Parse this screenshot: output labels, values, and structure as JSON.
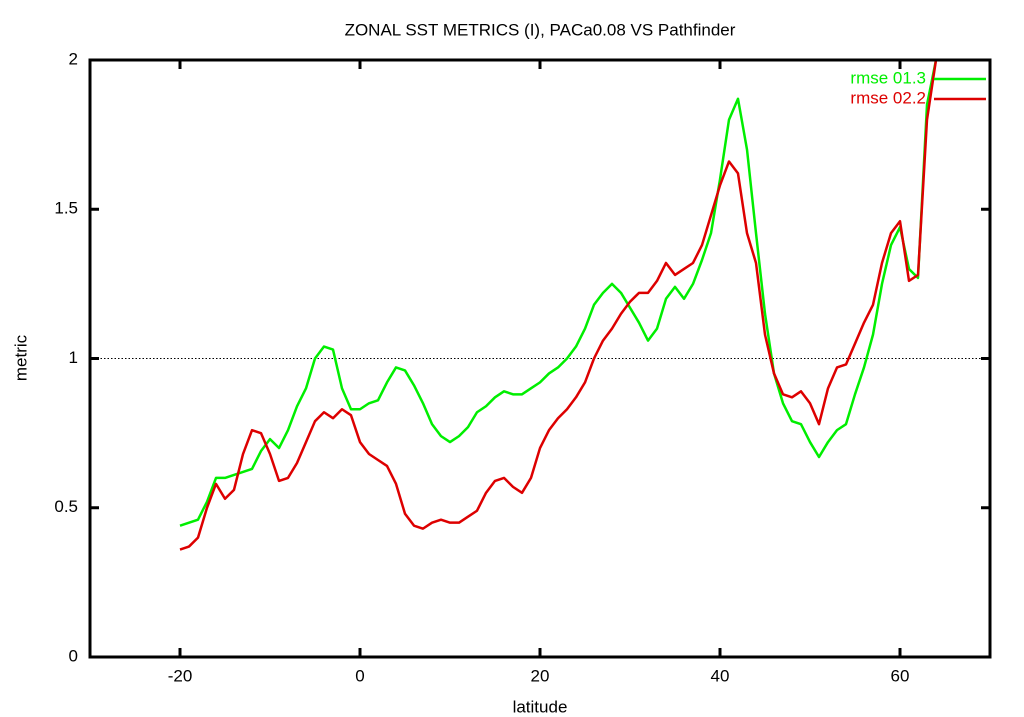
{
  "chart_data": {
    "type": "line",
    "title": "ZONAL SST METRICS (I), PACa0.08 VS Pathfinder",
    "x_label": "latitude",
    "y_label": "metric",
    "x": [
      -20,
      -19,
      -18,
      -17,
      -16,
      -15,
      -14,
      -13,
      -12,
      -11,
      -10,
      -9,
      -8,
      -7,
      -6,
      -5,
      -4,
      -3,
      -2,
      -1,
      0,
      1,
      2,
      3,
      4,
      5,
      6,
      7,
      8,
      9,
      10,
      11,
      12,
      13,
      14,
      15,
      16,
      17,
      18,
      19,
      20,
      21,
      22,
      23,
      24,
      25,
      26,
      27,
      28,
      29,
      30,
      31,
      32,
      33,
      34,
      35,
      36,
      37,
      38,
      39,
      40,
      41,
      42,
      43,
      44,
      45,
      46,
      47,
      48,
      49,
      50,
      51,
      52,
      53,
      54,
      55,
      56,
      57,
      58,
      59,
      60,
      61,
      62,
      63,
      64
    ],
    "series": [
      {
        "name": "rmse 01.3",
        "color": "#00ee00",
        "values": [
          0.44,
          0.45,
          0.46,
          0.52,
          0.6,
          0.6,
          0.61,
          0.62,
          0.63,
          0.69,
          0.73,
          0.7,
          0.76,
          0.84,
          0.9,
          1.0,
          1.04,
          1.03,
          0.9,
          0.83,
          0.83,
          0.85,
          0.86,
          0.92,
          0.97,
          0.96,
          0.91,
          0.85,
          0.78,
          0.74,
          0.72,
          0.74,
          0.77,
          0.82,
          0.84,
          0.87,
          0.89,
          0.88,
          0.88,
          0.9,
          0.92,
          0.95,
          0.97,
          1.0,
          1.04,
          1.1,
          1.18,
          1.22,
          1.25,
          1.22,
          1.17,
          1.12,
          1.06,
          1.1,
          1.2,
          1.24,
          1.2,
          1.25,
          1.33,
          1.42,
          1.6,
          1.8,
          1.87,
          1.7,
          1.42,
          1.15,
          0.95,
          0.85,
          0.79,
          0.78,
          0.72,
          0.67,
          0.72,
          0.76,
          0.78,
          0.88,
          0.97,
          1.08,
          1.25,
          1.38,
          1.44,
          1.3,
          1.27,
          1.85,
          2.0
        ]
      },
      {
        "name": "rmse 02.2",
        "color": "#dd0000",
        "values": [
          0.36,
          0.37,
          0.4,
          0.5,
          0.58,
          0.53,
          0.56,
          0.68,
          0.76,
          0.75,
          0.68,
          0.59,
          0.6,
          0.65,
          0.72,
          0.79,
          0.82,
          0.8,
          0.83,
          0.81,
          0.72,
          0.68,
          0.66,
          0.64,
          0.58,
          0.48,
          0.44,
          0.43,
          0.45,
          0.46,
          0.45,
          0.45,
          0.47,
          0.49,
          0.55,
          0.59,
          0.6,
          0.57,
          0.55,
          0.6,
          0.7,
          0.76,
          0.8,
          0.83,
          0.87,
          0.92,
          1.0,
          1.06,
          1.1,
          1.15,
          1.19,
          1.22,
          1.22,
          1.26,
          1.32,
          1.28,
          1.3,
          1.32,
          1.38,
          1.48,
          1.58,
          1.66,
          1.62,
          1.42,
          1.32,
          1.08,
          0.95,
          0.88,
          0.87,
          0.89,
          0.85,
          0.78,
          0.9,
          0.97,
          0.98,
          1.05,
          1.12,
          1.18,
          1.32,
          1.42,
          1.46,
          1.26,
          1.28,
          1.8,
          2.0
        ]
      }
    ],
    "xlim": [
      -30,
      70
    ],
    "ylim": [
      0,
      2
    ],
    "xticks": [
      -20,
      0,
      20,
      40,
      60
    ],
    "yticks": [
      0,
      0.5,
      1,
      1.5,
      2
    ],
    "hlines": [
      1
    ],
    "legend": "top-right"
  }
}
